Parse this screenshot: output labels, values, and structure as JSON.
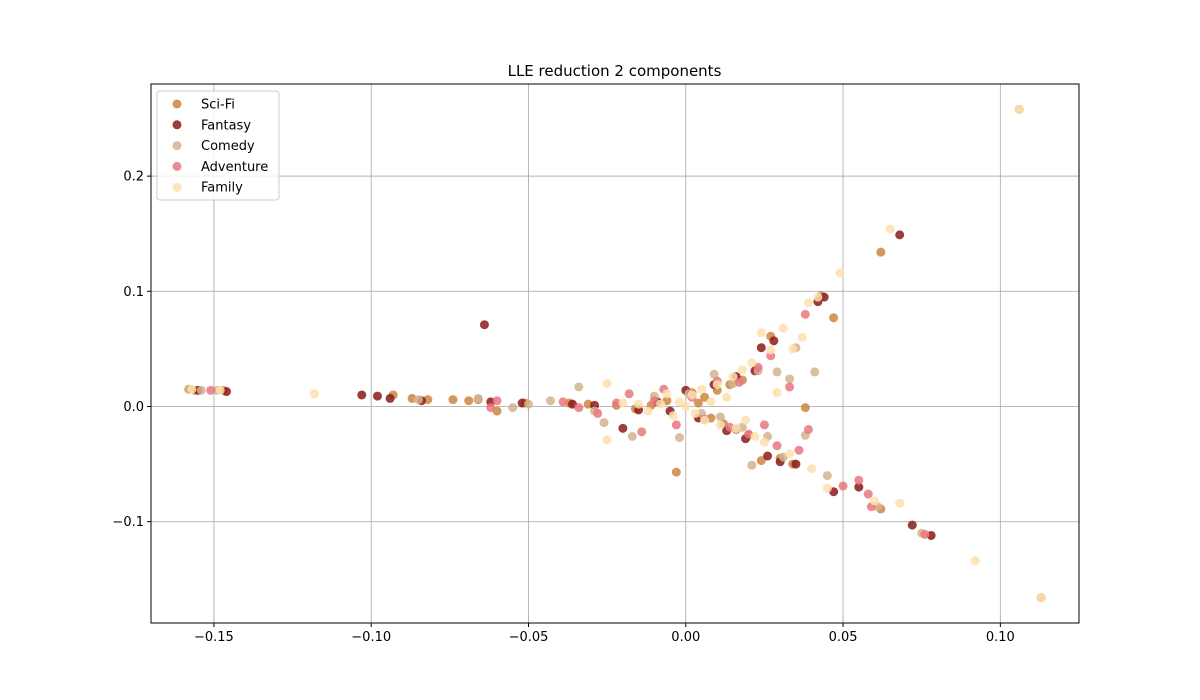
{
  "chart_data": {
    "type": "scatter",
    "title": "LLE reduction 2 components",
    "xlabel": "",
    "ylabel": "",
    "xlim": [
      -0.17,
      0.125
    ],
    "ylim": [
      -0.188,
      0.28
    ],
    "x_ticks": [
      -0.15,
      -0.1,
      -0.05,
      0.0,
      0.05,
      0.1
    ],
    "x_tick_labels": [
      "−0.15",
      "−0.10",
      "−0.05",
      "0.00",
      "0.05",
      "0.10"
    ],
    "y_ticks": [
      -0.1,
      0.0,
      0.1,
      0.2
    ],
    "y_tick_labels": [
      "−0.1",
      "0.0",
      "0.1",
      "0.2"
    ],
    "grid": true,
    "legend_position": "top-left",
    "series": [
      {
        "name": "Sci-Fi",
        "color": "#cd853f",
        "points": [
          [
            -0.158,
            0.015
          ],
          [
            -0.156,
            0.014
          ],
          [
            -0.147,
            0.014
          ],
          [
            -0.093,
            0.01
          ],
          [
            -0.087,
            0.007
          ],
          [
            -0.082,
            0.006
          ],
          [
            -0.074,
            0.006
          ],
          [
            -0.069,
            0.005
          ],
          [
            -0.066,
            0.006
          ],
          [
            -0.06,
            -0.004
          ],
          [
            -0.051,
            0.003
          ],
          [
            -0.037,
            0.003
          ],
          [
            -0.031,
            0.002
          ],
          [
            -0.022,
            0.001
          ],
          [
            -0.016,
            -0.002
          ],
          [
            -0.011,
            0.001
          ],
          [
            -0.006,
            0.005
          ],
          [
            -0.003,
            -0.057
          ],
          [
            0.002,
            0.012
          ],
          [
            0.004,
            0.003
          ],
          [
            0.006,
            0.008
          ],
          [
            0.008,
            -0.01
          ],
          [
            0.01,
            0.014
          ],
          [
            0.012,
            -0.015
          ],
          [
            0.014,
            0.019
          ],
          [
            0.016,
            -0.02
          ],
          [
            0.018,
            0.023
          ],
          [
            0.02,
            -0.025
          ],
          [
            0.024,
            -0.047
          ],
          [
            0.027,
            0.061
          ],
          [
            0.03,
            -0.045
          ],
          [
            0.034,
            -0.05
          ],
          [
            0.038,
            -0.001
          ],
          [
            0.043,
            0.096
          ],
          [
            0.047,
            0.077
          ],
          [
            0.062,
            0.134
          ],
          [
            0.062,
            -0.089
          ],
          [
            0.106,
            0.258
          ],
          [
            0.113,
            -0.166
          ]
        ]
      },
      {
        "name": "Fantasy",
        "color": "#8b1a1a",
        "points": [
          [
            -0.155,
            0.014
          ],
          [
            -0.146,
            0.013
          ],
          [
            -0.103,
            0.01
          ],
          [
            -0.098,
            0.009
          ],
          [
            -0.094,
            0.007
          ],
          [
            -0.084,
            0.005
          ],
          [
            -0.064,
            0.071
          ],
          [
            -0.062,
            0.004
          ],
          [
            -0.052,
            0.003
          ],
          [
            -0.036,
            0.002
          ],
          [
            -0.029,
            0.001
          ],
          [
            -0.02,
            -0.019
          ],
          [
            -0.015,
            -0.003
          ],
          [
            -0.009,
            0.004
          ],
          [
            -0.005,
            -0.004
          ],
          [
            0.0,
            0.014
          ],
          [
            0.004,
            -0.01
          ],
          [
            0.009,
            0.019
          ],
          [
            0.013,
            -0.021
          ],
          [
            0.016,
            0.026
          ],
          [
            0.019,
            -0.028
          ],
          [
            0.022,
            0.031
          ],
          [
            0.024,
            0.051
          ],
          [
            0.026,
            -0.043
          ],
          [
            0.028,
            0.057
          ],
          [
            0.03,
            -0.048
          ],
          [
            0.035,
            -0.05
          ],
          [
            0.042,
            0.091
          ],
          [
            0.044,
            0.095
          ],
          [
            0.047,
            -0.074
          ],
          [
            0.055,
            -0.07
          ],
          [
            0.068,
            0.149
          ],
          [
            0.072,
            -0.103
          ],
          [
            0.078,
            -0.112
          ]
        ]
      },
      {
        "name": "Comedy",
        "color": "#d2b48c",
        "points": [
          [
            -0.158,
            0.015
          ],
          [
            -0.154,
            0.014
          ],
          [
            -0.149,
            0.014
          ],
          [
            -0.085,
            0.006
          ],
          [
            -0.066,
            0.007
          ],
          [
            -0.055,
            -0.001
          ],
          [
            -0.05,
            0.002
          ],
          [
            -0.043,
            0.005
          ],
          [
            -0.034,
            0.017
          ],
          [
            -0.029,
            -0.004
          ],
          [
            -0.026,
            -0.014
          ],
          [
            -0.017,
            -0.026
          ],
          [
            -0.01,
            0.009
          ],
          [
            -0.002,
            -0.027
          ],
          [
            0.001,
            0.011
          ],
          [
            0.005,
            -0.006
          ],
          [
            0.009,
            0.028
          ],
          [
            0.011,
            -0.009
          ],
          [
            0.015,
            0.02
          ],
          [
            0.018,
            -0.018
          ],
          [
            0.021,
            -0.051
          ],
          [
            0.023,
            0.031
          ],
          [
            0.026,
            -0.026
          ],
          [
            0.029,
            0.03
          ],
          [
            0.031,
            -0.044
          ],
          [
            0.033,
            0.024
          ],
          [
            0.035,
            0.051
          ],
          [
            0.038,
            -0.025
          ],
          [
            0.041,
            0.03
          ],
          [
            0.045,
            -0.06
          ],
          [
            0.061,
            -0.087
          ],
          [
            0.075,
            -0.11
          ],
          [
            0.106,
            0.258
          ],
          [
            0.113,
            -0.166
          ]
        ]
      },
      {
        "name": "Adventure",
        "color": "#e9777f",
        "points": [
          [
            -0.151,
            0.014
          ],
          [
            -0.062,
            -0.001
          ],
          [
            -0.06,
            0.005
          ],
          [
            -0.039,
            0.004
          ],
          [
            -0.034,
            -0.001
          ],
          [
            -0.028,
            -0.006
          ],
          [
            -0.022,
            0.003
          ],
          [
            -0.018,
            0.011
          ],
          [
            -0.014,
            -0.022
          ],
          [
            -0.01,
            0.005
          ],
          [
            -0.007,
            0.015
          ],
          [
            -0.003,
            -0.016
          ],
          [
            0.002,
            0.008
          ],
          [
            0.006,
            -0.011
          ],
          [
            0.01,
            0.022
          ],
          [
            0.014,
            -0.018
          ],
          [
            0.017,
            0.021
          ],
          [
            0.02,
            -0.024
          ],
          [
            0.023,
            0.034
          ],
          [
            0.025,
            -0.016
          ],
          [
            0.027,
            0.044
          ],
          [
            0.029,
            -0.034
          ],
          [
            0.033,
            0.017
          ],
          [
            0.036,
            -0.038
          ],
          [
            0.039,
            -0.02
          ],
          [
            0.038,
            0.08
          ],
          [
            0.05,
            -0.069
          ],
          [
            0.055,
            -0.064
          ],
          [
            0.058,
            -0.076
          ],
          [
            0.059,
            -0.087
          ],
          [
            0.076,
            -0.111
          ]
        ]
      },
      {
        "name": "Family",
        "color": "#fddfae",
        "points": [
          [
            -0.157,
            0.015
          ],
          [
            -0.148,
            0.014
          ],
          [
            -0.118,
            0.011
          ],
          [
            -0.025,
            -0.029
          ],
          [
            -0.025,
            0.02
          ],
          [
            -0.02,
            0.003
          ],
          [
            -0.015,
            0.002
          ],
          [
            -0.012,
            -0.004
          ],
          [
            -0.008,
            0.002
          ],
          [
            -0.006,
            0.011
          ],
          [
            -0.004,
            -0.008
          ],
          [
            -0.002,
            0.004
          ],
          [
            0.0,
            0.0
          ],
          [
            0.002,
            0.01
          ],
          [
            0.003,
            -0.006
          ],
          [
            0.005,
            0.015
          ],
          [
            0.006,
            -0.012
          ],
          [
            0.008,
            0.004
          ],
          [
            0.01,
            0.019
          ],
          [
            0.011,
            -0.016
          ],
          [
            0.013,
            0.008
          ],
          [
            0.015,
            0.026
          ],
          [
            0.016,
            -0.019
          ],
          [
            0.018,
            0.032
          ],
          [
            0.019,
            -0.012
          ],
          [
            0.021,
            0.038
          ],
          [
            0.022,
            -0.026
          ],
          [
            0.024,
            0.064
          ],
          [
            0.025,
            -0.031
          ],
          [
            0.027,
            0.049
          ],
          [
            0.029,
            0.012
          ],
          [
            0.031,
            0.068
          ],
          [
            0.033,
            -0.041
          ],
          [
            0.034,
            0.05
          ],
          [
            0.037,
            0.06
          ],
          [
            0.039,
            0.09
          ],
          [
            0.04,
            -0.054
          ],
          [
            0.042,
            0.095
          ],
          [
            0.045,
            -0.071
          ],
          [
            0.049,
            0.116
          ],
          [
            0.06,
            -0.082
          ],
          [
            0.065,
            0.154
          ],
          [
            0.068,
            -0.084
          ],
          [
            0.092,
            -0.134
          ],
          [
            0.106,
            0.258
          ],
          [
            0.113,
            -0.166
          ]
        ]
      }
    ]
  }
}
